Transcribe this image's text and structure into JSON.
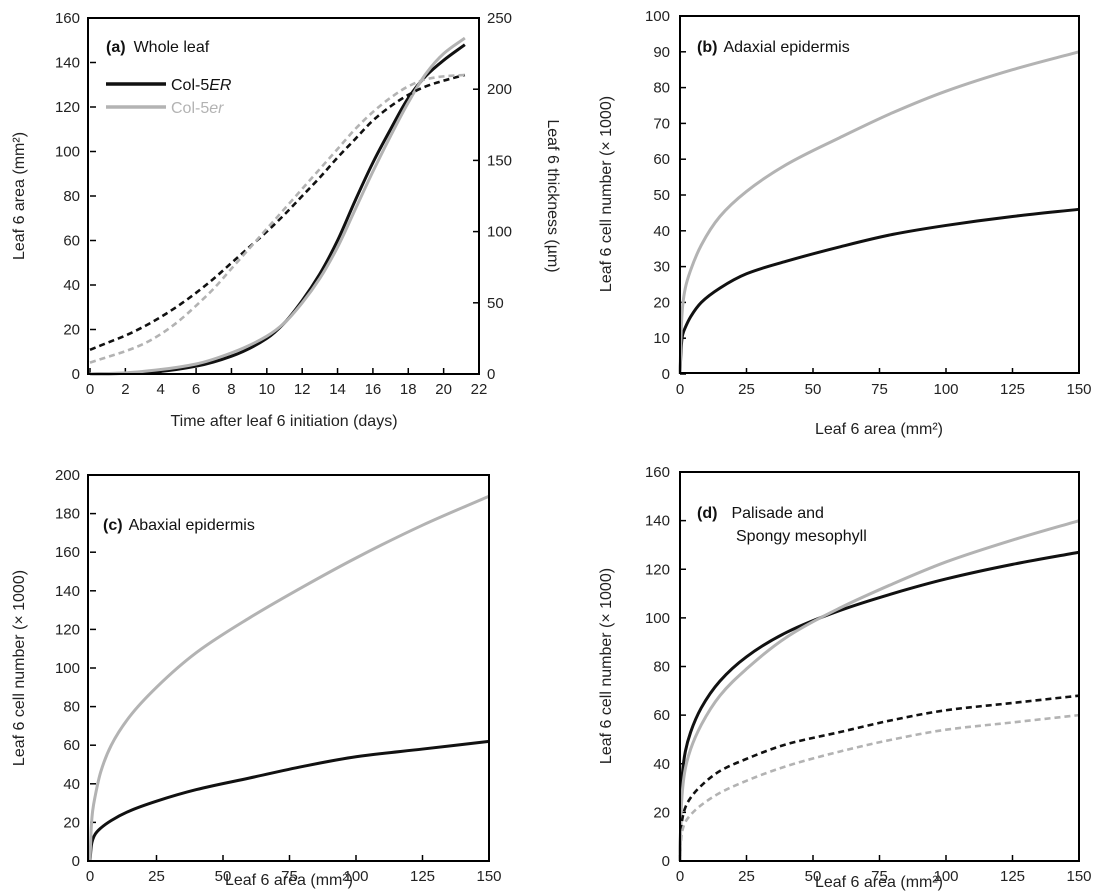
{
  "colors": {
    "ER": "#111111",
    "er": "#b3b3b3"
  },
  "legend": {
    "entries": [
      {
        "prefix": "Col-5",
        "suffix": "ER",
        "color": "#111111"
      },
      {
        "prefix": "Col-5",
        "suffix": "er",
        "color": "#b3b3b3"
      }
    ]
  },
  "chart_data": [
    {
      "type": "line",
      "panel_label": "(a)",
      "title": "Whole leaf",
      "xlabel": "Time after leaf 6 initiation (days)",
      "ylabel_left": "Leaf 6 area (mm²)",
      "ylabel_right": "Leaf 6 thickness (µm)",
      "xlim": [
        0,
        22
      ],
      "ylim_left": [
        0,
        160
      ],
      "ylim_right": [
        0,
        250
      ],
      "xticks": [
        0,
        2,
        4,
        6,
        8,
        10,
        12,
        14,
        16,
        18,
        20,
        22
      ],
      "yticks_left": [
        0,
        20,
        40,
        60,
        80,
        100,
        120,
        140,
        160
      ],
      "yticks_right": [
        0,
        50,
        100,
        150,
        200,
        250
      ],
      "grid": false,
      "legend_position": "top-left",
      "series": [
        {
          "name": "Col-5ER",
          "quantity": "area",
          "axis": "left",
          "style": "solid",
          "color": "#111111",
          "x": [
            0,
            2,
            4,
            6,
            8,
            10,
            11,
            12,
            13,
            14,
            15,
            16,
            17,
            18,
            19,
            20,
            21.2
          ],
          "y": [
            0,
            0.3,
            1.2,
            3.5,
            8,
            16,
            23,
            33,
            45,
            60,
            78,
            95,
            110,
            124,
            134,
            141,
            148
          ]
        },
        {
          "name": "Col-5er",
          "quantity": "area",
          "axis": "left",
          "style": "solid",
          "color": "#b3b3b3",
          "x": [
            0,
            2,
            4,
            6,
            8,
            10,
            11,
            12,
            13,
            14,
            15,
            16,
            17,
            18,
            19,
            20,
            21.2
          ],
          "y": [
            0,
            0.5,
            2,
            4.5,
            9.5,
            17,
            23,
            32,
            43,
            57,
            74,
            91,
            107,
            122,
            135,
            144,
            151
          ]
        },
        {
          "name": "Col-5ER",
          "quantity": "thickness",
          "axis": "right",
          "style": "dashed",
          "color": "#111111",
          "x": [
            0,
            1,
            2,
            3,
            4,
            5,
            6,
            7,
            8,
            9,
            10,
            11,
            12,
            13,
            14,
            15,
            16,
            17,
            18,
            19,
            20,
            21.2
          ],
          "y": [
            17,
            22,
            27,
            33,
            40,
            48,
            57,
            67,
            78,
            89,
            100,
            112,
            125,
            138,
            152,
            165,
            178,
            188,
            196,
            202,
            206,
            210
          ]
        },
        {
          "name": "Col-5er",
          "quantity": "thickness",
          "axis": "right",
          "style": "dashed",
          "color": "#b3b3b3",
          "x": [
            0,
            1,
            2,
            3,
            4,
            5,
            6,
            7,
            8,
            9,
            10,
            11,
            12,
            13,
            14,
            15,
            16,
            17,
            18,
            19,
            20,
            21.2
          ],
          "y": [
            8,
            12,
            16,
            21,
            28,
            37,
            48,
            60,
            74,
            88,
            102,
            116,
            130,
            144,
            158,
            172,
            184,
            194,
            202,
            207,
            209,
            210
          ]
        }
      ]
    },
    {
      "type": "line",
      "panel_label": "(b)",
      "title": "Adaxial epidermis",
      "xlabel": "Leaf 6 area (mm²)",
      "ylabel": "Leaf 6 cell number (× 1000)",
      "xlim": [
        0,
        150
      ],
      "ylim": [
        0,
        100
      ],
      "xticks": [
        0,
        25,
        50,
        75,
        100,
        125,
        150
      ],
      "yticks": [
        0,
        10,
        20,
        30,
        40,
        50,
        60,
        70,
        80,
        90,
        100
      ],
      "grid": false,
      "series": [
        {
          "name": "Col-5ER",
          "style": "solid",
          "color": "#111111",
          "x": [
            0,
            0.5,
            1,
            2,
            4,
            8,
            15,
            25,
            40,
            60,
            80,
            100,
            125,
            150
          ],
          "y": [
            0,
            8,
            11,
            13,
            16,
            20,
            24,
            28,
            31.5,
            35.5,
            39,
            41.5,
            44,
            46
          ]
        },
        {
          "name": "Col-5er",
          "style": "solid",
          "color": "#b3b3b3",
          "x": [
            0,
            0.5,
            1,
            2,
            4,
            8,
            15,
            25,
            40,
            60,
            80,
            100,
            125,
            150
          ],
          "y": [
            0,
            13,
            19,
            24,
            29,
            36,
            44,
            51,
            58.5,
            66,
            73,
            79,
            85,
            90
          ]
        }
      ]
    },
    {
      "type": "line",
      "panel_label": "(c)",
      "title": "Abaxial epidermis",
      "xlabel": "Leaf 6 area (mm²)",
      "ylabel": "Leaf 6 cell number (× 1000)",
      "xlim": [
        0,
        150
      ],
      "ylim": [
        0,
        200
      ],
      "xticks": [
        0,
        25,
        50,
        75,
        100,
        125,
        150
      ],
      "yticks": [
        0,
        20,
        40,
        60,
        80,
        100,
        120,
        140,
        160,
        180,
        200
      ],
      "grid": false,
      "series": [
        {
          "name": "Col-5ER",
          "style": "solid",
          "color": "#111111",
          "x": [
            0,
            0.5,
            1,
            2,
            4,
            8,
            15,
            25,
            40,
            60,
            80,
            100,
            125,
            150
          ],
          "y": [
            0,
            8,
            11,
            14,
            17,
            21,
            26,
            31,
            37,
            43,
            49,
            54,
            58,
            62
          ]
        },
        {
          "name": "Col-5er",
          "style": "solid",
          "color": "#b3b3b3",
          "x": [
            0,
            0.5,
            1,
            2,
            4,
            8,
            15,
            25,
            40,
            60,
            80,
            100,
            125,
            150
          ],
          "y": [
            0,
            18,
            26,
            34,
            46,
            60,
            75,
            90,
            108,
            126,
            142,
            157,
            174,
            189
          ]
        }
      ]
    },
    {
      "type": "line",
      "panel_label": "(d)",
      "title": "Palisade and",
      "title_line2": "Spongy mesophyll",
      "xlabel": "Leaf 6 area (mm²)",
      "ylabel": "Leaf 6 cell number (× 1000)",
      "xlim": [
        0,
        150
      ],
      "ylim": [
        0,
        160
      ],
      "xticks": [
        0,
        25,
        50,
        75,
        100,
        125,
        150
      ],
      "yticks": [
        0,
        20,
        40,
        60,
        80,
        100,
        120,
        140,
        160
      ],
      "grid": false,
      "series": [
        {
          "name": "Col-5ER",
          "tissue": "palisade",
          "style": "solid",
          "color": "#111111",
          "x": [
            0,
            0.5,
            1,
            2,
            4,
            8,
            15,
            25,
            40,
            60,
            80,
            100,
            125,
            150
          ],
          "y": [
            0,
            28,
            37,
            45,
            53,
            63,
            74,
            84,
            94,
            103,
            110,
            116,
            122,
            127
          ]
        },
        {
          "name": "Col-5er",
          "tissue": "palisade",
          "style": "solid",
          "color": "#b3b3b3",
          "x": [
            0,
            0.5,
            1,
            2,
            4,
            8,
            15,
            25,
            40,
            60,
            80,
            100,
            125,
            150
          ],
          "y": [
            0,
            22,
            30,
            38,
            46,
            56,
            68,
            79,
            92,
            104,
            114,
            123,
            132,
            140
          ]
        },
        {
          "name": "Col-5ER",
          "tissue": "spongy",
          "style": "dashed",
          "color": "#111111",
          "x": [
            0,
            0.5,
            1,
            2,
            4,
            8,
            15,
            25,
            40,
            60,
            80,
            100,
            125,
            150
          ],
          "y": [
            0,
            14,
            18,
            22,
            26,
            31,
            37,
            42,
            48,
            53,
            58,
            62,
            65,
            68
          ]
        },
        {
          "name": "Col-5er",
          "tissue": "spongy",
          "style": "dashed",
          "color": "#b3b3b3",
          "x": [
            0,
            0.5,
            1,
            2,
            4,
            8,
            15,
            25,
            40,
            60,
            80,
            100,
            125,
            150
          ],
          "y": [
            0,
            10,
            13,
            16,
            19,
            23,
            28,
            33,
            39,
            45,
            50,
            54,
            57,
            60
          ]
        }
      ]
    }
  ]
}
